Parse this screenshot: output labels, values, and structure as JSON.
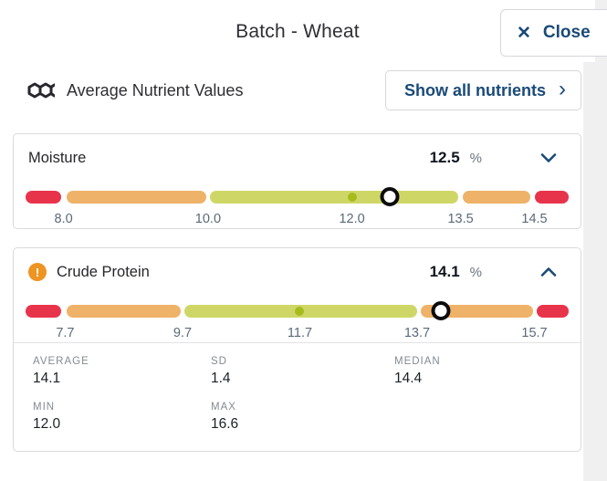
{
  "header": {
    "title": "Batch - Wheat",
    "close_label": "Close"
  },
  "section": {
    "title": "Average Nutrient Values",
    "show_all_label": "Show all nutrients"
  },
  "icons": {
    "close": "✕",
    "chevron_right": "›",
    "warning": "!"
  },
  "colors": {
    "red": "#e8344b",
    "orange": "#efb269",
    "green": "#ced766",
    "target_dot": "#a6bb1e",
    "navy": "#1a4a78",
    "warning_bg": "#ee9422"
  },
  "nutrients": [
    {
      "name": "Moisture",
      "value": "12.5",
      "unit": "%",
      "warning": false,
      "expanded": false,
      "segments": [
        {
          "color": "red",
          "start": 0,
          "end": 6.6
        },
        {
          "color": "orange",
          "start": 7.5,
          "end": 33.2
        },
        {
          "color": "green",
          "start": 34.0,
          "end": 79.7
        },
        {
          "color": "orange",
          "start": 80.5,
          "end": 93.0
        },
        {
          "color": "red",
          "start": 93.8,
          "end": 100
        }
      ],
      "ticks": [
        {
          "label": "8.0",
          "pct": 7.0
        },
        {
          "label": "10.0",
          "pct": 33.6
        },
        {
          "label": "12.0",
          "pct": 60.1
        },
        {
          "label": "13.5",
          "pct": 80.1
        },
        {
          "label": "14.5",
          "pct": 93.7
        }
      ],
      "target_pct": 60.1,
      "marker_pct": 67.1,
      "stats": []
    },
    {
      "name": "Crude Protein",
      "value": "14.1",
      "unit": "%",
      "warning": true,
      "expanded": true,
      "segments": [
        {
          "color": "red",
          "start": 0,
          "end": 6.6
        },
        {
          "color": "orange",
          "start": 7.5,
          "end": 28.6
        },
        {
          "color": "green",
          "start": 29.3,
          "end": 72.1
        },
        {
          "color": "orange",
          "start": 72.8,
          "end": 93.4
        },
        {
          "color": "red",
          "start": 94.1,
          "end": 100
        }
      ],
      "ticks": [
        {
          "label": "7.7",
          "pct": 7.3
        },
        {
          "label": "9.7",
          "pct": 28.9
        },
        {
          "label": "11.7",
          "pct": 50.5
        },
        {
          "label": "13.7",
          "pct": 72.1
        },
        {
          "label": "15.7",
          "pct": 93.7
        }
      ],
      "target_pct": 50.5,
      "marker_pct": 76.4,
      "stats": [
        {
          "label": "AVERAGE",
          "value": "14.1"
        },
        {
          "label": "SD",
          "value": "1.4"
        },
        {
          "label": "MEDIAN",
          "value": "14.4"
        },
        {
          "label": "MIN",
          "value": "12.0"
        },
        {
          "label": "MAX",
          "value": "16.6"
        }
      ]
    }
  ]
}
